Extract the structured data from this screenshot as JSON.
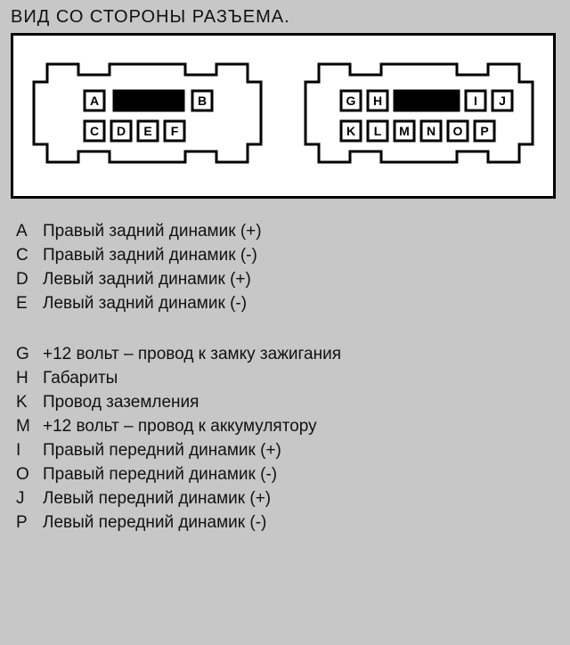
{
  "title": "ВИД СО СТОРОНЫ РАЗЪЕМА.",
  "colors": {
    "page_bg": "#c7c7c7",
    "diagram_border": "#000000",
    "diagram_bg": "#ffffff",
    "stroke": "#000000",
    "label_bg": "#ffffff",
    "slot_fill": "#000000"
  },
  "connectors": {
    "left": {
      "top_row": [
        "A",
        "B"
      ],
      "bottom_row": [
        "C",
        "D",
        "E",
        "F"
      ]
    },
    "right": {
      "top_row": [
        "G",
        "H",
        "I",
        "J"
      ],
      "bottom_row": [
        "K",
        "L",
        "M",
        "N",
        "O",
        "P"
      ]
    }
  },
  "legend_group1": [
    {
      "letter": "A",
      "desc": "Правый задний динамик (+)"
    },
    {
      "letter": "C",
      "desc": "Правый задний динамик (-)"
    },
    {
      "letter": "D",
      "desc": "Левый задний динамик (+)"
    },
    {
      "letter": "E",
      "desc": "Левый задний динамик (-)"
    }
  ],
  "legend_group2": [
    {
      "letter": "G",
      "desc": "+12 вольт – провод к замку зажигания"
    },
    {
      "letter": "H",
      "desc": "Габариты"
    },
    {
      "letter": "K",
      "desc": "Провод заземления"
    },
    {
      "letter": "M",
      "desc": "+12 вольт – провод к аккумулятору"
    },
    {
      "letter": "I",
      "desc": "Правый передний динамик (+)"
    },
    {
      "letter": "O",
      "desc": "Правый передний динамик (-)"
    },
    {
      "letter": "J",
      "desc": "Левый передний динамик (+)"
    },
    {
      "letter": "P",
      "desc": "Левый передний динамик (-)"
    }
  ],
  "diagram_style": {
    "stroke_width": 3,
    "pin_box_w": 22,
    "pin_box_h": 22,
    "font_size_title": 20,
    "font_size_legend": 19,
    "font_size_pin": 14
  }
}
